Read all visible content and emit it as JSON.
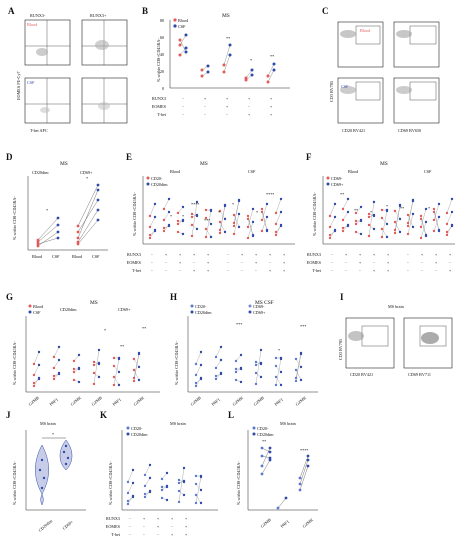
{
  "colors": {
    "blood": "#e25a5a",
    "csf": "#2f4aa8",
    "cd20": "#2f4aa8",
    "cd69": "#4a5fb8",
    "frame": "#222222",
    "gate": "#555555"
  },
  "panels": {
    "A": {
      "label": "A",
      "col_titles": [
        "RUNX3-",
        "RUNX3+"
      ],
      "row_labels": [
        "Blood",
        "CSF"
      ],
      "ylabel": "EOMES PE-Cy7",
      "xlabel": "T-bet APC"
    },
    "B": {
      "label": "B",
      "title": "MS",
      "ylabel": "% within CD8+CD45RA-",
      "legend": [
        "Blood",
        "CSF"
      ],
      "yticks": [
        "0",
        "20",
        "40",
        "60",
        "80"
      ],
      "row_labels": [
        "RUNX3",
        "EOMES",
        "T-bet"
      ],
      "signs": [
        [
          "-",
          "+",
          "+",
          "+",
          "+"
        ],
        [
          "-",
          "-",
          "+",
          "-",
          "+"
        ],
        [
          "-",
          "-",
          "-",
          "+",
          "+"
        ]
      ],
      "stars": [
        "**",
        "*",
        "**"
      ]
    },
    "C": {
      "label": "C",
      "row_labels": [
        "Blood",
        "CSF"
      ],
      "ylabel": "CD3 BV785",
      "xlabels": [
        "CD20 BV421",
        "CD69 BV650"
      ]
    },
    "D": {
      "label": "D",
      "title": "MS",
      "groups": [
        "CD20dim",
        "CD69+"
      ],
      "ylabel": "% within CD8+CD45RA-",
      "yticks": [
        "0",
        "20",
        "40",
        "60",
        "80",
        "100"
      ],
      "xticks": [
        "Blood",
        "CSF",
        "Blood",
        "CSF"
      ],
      "stars": [
        "*",
        "*"
      ]
    },
    "E": {
      "label": "E",
      "title": "MS",
      "subtitles": [
        "Blood",
        "CSF"
      ],
      "legend": [
        "CD20-",
        "CD20dim"
      ],
      "ylabel": "% within CD8+CD45RA-",
      "yticks": [
        "0",
        "20",
        "40",
        "60",
        "80"
      ],
      "row_labels": [
        "RUNX3",
        "EOMES",
        "T-bet"
      ],
      "stars": [
        "*",
        "*",
        "****",
        "***",
        "*",
        "*",
        "*",
        "****"
      ]
    },
    "F": {
      "label": "F",
      "title": "MS",
      "subtitles": [
        "Blood",
        "CSF"
      ],
      "legend": [
        "CD69-",
        "CD69+"
      ],
      "ylabel": "% within CD8+CD45RA-",
      "yticks": [
        "0",
        "20",
        "40",
        "60",
        "80"
      ],
      "row_labels": [
        "RUNX3",
        "EOMES",
        "T-bet"
      ],
      "stars": [
        "**",
        "**",
        "*",
        "*",
        "**",
        "*"
      ]
    },
    "G": {
      "label": "G",
      "title": "MS",
      "legend": [
        "Blood",
        "CSF"
      ],
      "groups": [
        "CD20dim",
        "CD69+"
      ],
      "ylabel": "% within CD8+CD45RA-",
      "yticks": [
        "0",
        "20",
        "40",
        "60",
        "80",
        "100"
      ],
      "xticks": [
        "GZMB",
        "PRF1",
        "GZMK",
        "GZMB",
        "PRF1",
        "GZMK"
      ],
      "stars": [
        "*",
        "**",
        "**"
      ]
    },
    "H": {
      "label": "H",
      "title": "MS CSF",
      "legend": [
        "CD20-",
        "CD20dim",
        "CD69-",
        "CD69+"
      ],
      "ylabel": "% within CD8+CD45RA-",
      "yticks": [
        "0",
        "20",
        "40",
        "60",
        "80",
        "100"
      ],
      "xticks": [
        "GZMB",
        "PRF1",
        "GZMK",
        "GZMB",
        "PRF1",
        "GZMK"
      ],
      "stars": [
        "***",
        "*",
        "***"
      ]
    },
    "I": {
      "label": "I",
      "title": "MS brain",
      "ylabel": "CD3 BV785",
      "xlabels": [
        "CD20 BV421",
        "CD69 BV711"
      ]
    },
    "J": {
      "label": "J",
      "title": "MS brain",
      "ylabel": "% within CD8+CD45RA-",
      "yticks": [
        "0",
        "20",
        "40",
        "60",
        "80",
        "100"
      ],
      "xticks": [
        "CD20dim",
        "CD69+"
      ],
      "stars": [
        "*"
      ]
    },
    "K": {
      "label": "K",
      "title": "MS brain",
      "legend": [
        "CD20-",
        "CD20dim"
      ],
      "ylabel": "% within CD8+CD45RA-",
      "yticks": [
        "0",
        "20",
        "40",
        "60",
        "80",
        "100"
      ],
      "row_labels": [
        "RUNX3",
        "EOMES",
        "T-bet"
      ]
    },
    "L": {
      "label": "L",
      "title": "MS brain",
      "legend": [
        "CD20-",
        "CD20dim"
      ],
      "ylabel": "% within CD8+CD45RA-",
      "yticks": [
        "0",
        "20",
        "40",
        "60",
        "80",
        "100"
      ],
      "xticks": [
        "GZMB",
        "PRF1",
        "GZMK"
      ],
      "stars": [
        "**",
        "****"
      ]
    }
  }
}
